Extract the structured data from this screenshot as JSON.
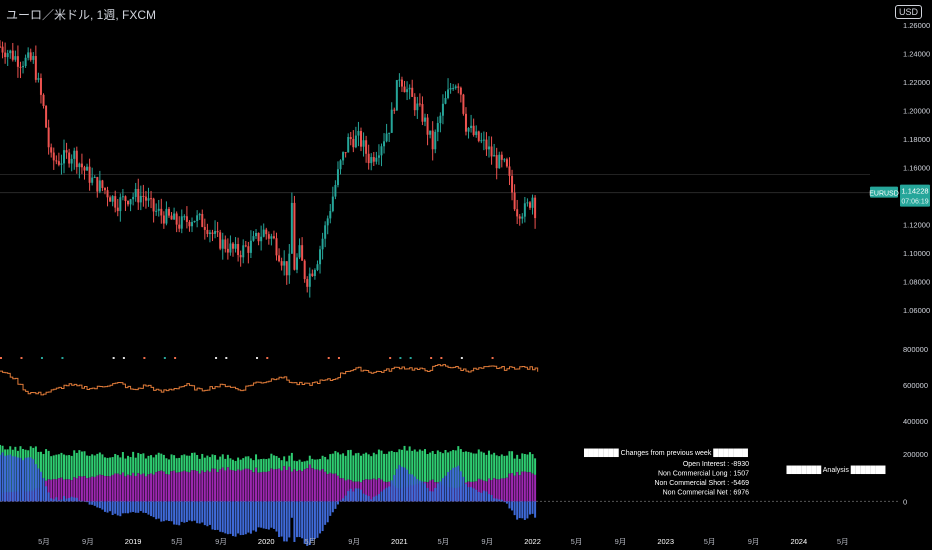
{
  "header": {
    "title": "ユーロ／米ドル, 1週, FXCM",
    "currency_button": "USD"
  },
  "chart_data": [
    {
      "type": "candlestick",
      "symbol_tag": "EURUSD",
      "last_price": "1.14228",
      "countdown": "07:06:19",
      "ylim": [
        1.05,
        1.265
      ],
      "y_ticks": [
        "1.26000",
        "1.24000",
        "1.22000",
        "1.20000",
        "1.18000",
        "1.16000",
        "1.14000",
        "1.12000",
        "1.10000",
        "1.08000",
        "1.06000"
      ],
      "colors": {
        "up": "#26a69a",
        "down": "#ef5350",
        "tag": "#26a69a"
      },
      "path": [
        [
          2018.0,
          1.245
        ],
        [
          2018.08,
          1.24
        ],
        [
          2018.15,
          1.235
        ],
        [
          2018.25,
          1.235
        ],
        [
          2018.33,
          1.2
        ],
        [
          2018.38,
          1.165
        ],
        [
          2018.45,
          1.165
        ],
        [
          2018.55,
          1.17
        ],
        [
          2018.62,
          1.16
        ],
        [
          2018.7,
          1.15
        ],
        [
          2018.78,
          1.145
        ],
        [
          2018.88,
          1.135
        ],
        [
          2018.98,
          1.14
        ],
        [
          2019.08,
          1.14
        ],
        [
          2019.15,
          1.13
        ],
        [
          2019.25,
          1.125
        ],
        [
          2019.35,
          1.12
        ],
        [
          2019.45,
          1.125
        ],
        [
          2019.55,
          1.12
        ],
        [
          2019.62,
          1.11
        ],
        [
          2019.7,
          1.105
        ],
        [
          2019.78,
          1.1
        ],
        [
          2019.88,
          1.105
        ],
        [
          2019.98,
          1.115
        ],
        [
          2020.05,
          1.11
        ],
        [
          2020.12,
          1.095
        ],
        [
          2020.17,
          1.085
        ],
        [
          2020.19,
          1.14
        ],
        [
          2020.21,
          1.09
        ],
        [
          2020.25,
          1.1
        ],
        [
          2020.3,
          1.08
        ],
        [
          2020.38,
          1.095
        ],
        [
          2020.45,
          1.12
        ],
        [
          2020.55,
          1.16
        ],
        [
          2020.62,
          1.18
        ],
        [
          2020.7,
          1.18
        ],
        [
          2020.78,
          1.165
        ],
        [
          2020.85,
          1.175
        ],
        [
          2020.93,
          1.19
        ],
        [
          2021.0,
          1.225
        ],
        [
          2021.08,
          1.21
        ],
        [
          2021.18,
          1.195
        ],
        [
          2021.25,
          1.175
        ],
        [
          2021.32,
          1.2
        ],
        [
          2021.4,
          1.22
        ],
        [
          2021.45,
          1.22
        ],
        [
          2021.5,
          1.19
        ],
        [
          2021.58,
          1.18
        ],
        [
          2021.65,
          1.175
        ],
        [
          2021.72,
          1.165
        ],
        [
          2021.8,
          1.16
        ],
        [
          2021.88,
          1.13
        ],
        [
          2021.95,
          1.13
        ],
        [
          2022.0,
          1.14
        ],
        [
          2022.02,
          1.13
        ]
      ]
    },
    {
      "type": "line",
      "series": [
        {
          "name": "Open Interest",
          "color": "#e07b39"
        }
      ],
      "ylim": [
        350000,
        850000
      ],
      "y_ticks": [
        "800000",
        "600000",
        "400000"
      ],
      "points": [
        [
          2018.0,
          680000
        ],
        [
          2018.1,
          640000
        ],
        [
          2018.2,
          560000
        ],
        [
          2018.3,
          550000
        ],
        [
          2018.4,
          570000
        ],
        [
          2018.5,
          600000
        ],
        [
          2018.6,
          590000
        ],
        [
          2018.7,
          580000
        ],
        [
          2018.8,
          600000
        ],
        [
          2018.9,
          610000
        ],
        [
          2019.0,
          570000
        ],
        [
          2019.1,
          600000
        ],
        [
          2019.2,
          560000
        ],
        [
          2019.3,
          580000
        ],
        [
          2019.4,
          600000
        ],
        [
          2019.5,
          570000
        ],
        [
          2019.6,
          590000
        ],
        [
          2019.7,
          600000
        ],
        [
          2019.8,
          570000
        ],
        [
          2019.9,
          610000
        ],
        [
          2020.0,
          620000
        ],
        [
          2020.1,
          650000
        ],
        [
          2020.2,
          610000
        ],
        [
          2020.3,
          600000
        ],
        [
          2020.4,
          620000
        ],
        [
          2020.5,
          630000
        ],
        [
          2020.6,
          680000
        ],
        [
          2020.7,
          690000
        ],
        [
          2020.8,
          670000
        ],
        [
          2020.9,
          680000
        ],
        [
          2021.0,
          700000
        ],
        [
          2021.1,
          690000
        ],
        [
          2021.2,
          680000
        ],
        [
          2021.3,
          710000
        ],
        [
          2021.4,
          700000
        ],
        [
          2021.5,
          680000
        ],
        [
          2021.6,
          690000
        ],
        [
          2021.7,
          700000
        ],
        [
          2021.8,
          690000
        ],
        [
          2021.9,
          700000
        ],
        [
          2022.0,
          690000
        ],
        [
          2022.05,
          680000
        ]
      ]
    },
    {
      "type": "bar",
      "series": [
        {
          "name": "Non Commercial Long",
          "color": "#2ecc71"
        },
        {
          "name": "Non Commercial Short",
          "color": "#9c27b0"
        },
        {
          "name": "Non Commercial Net",
          "color": "#3f6ad8"
        }
      ],
      "y_ticks": [
        "200000",
        "0"
      ],
      "ylim": [
        -100000,
        260000
      ]
    }
  ],
  "x_axis": [
    "5月",
    "9月",
    "2019",
    "5月",
    "9月",
    "2020",
    "5月",
    "9月",
    "2021",
    "5月",
    "9月",
    "2022",
    "5月",
    "9月",
    "2023",
    "5月",
    "9月",
    "2024",
    "5月"
  ],
  "table": {
    "heading": "Changes from previous week",
    "rows": [
      "Open Interest : -8930",
      "Non Commercial Long : 1507",
      "Non Commercial Short : -5469",
      "Non Commercial Net : 6976"
    ],
    "analysis_label": "Analysis"
  }
}
